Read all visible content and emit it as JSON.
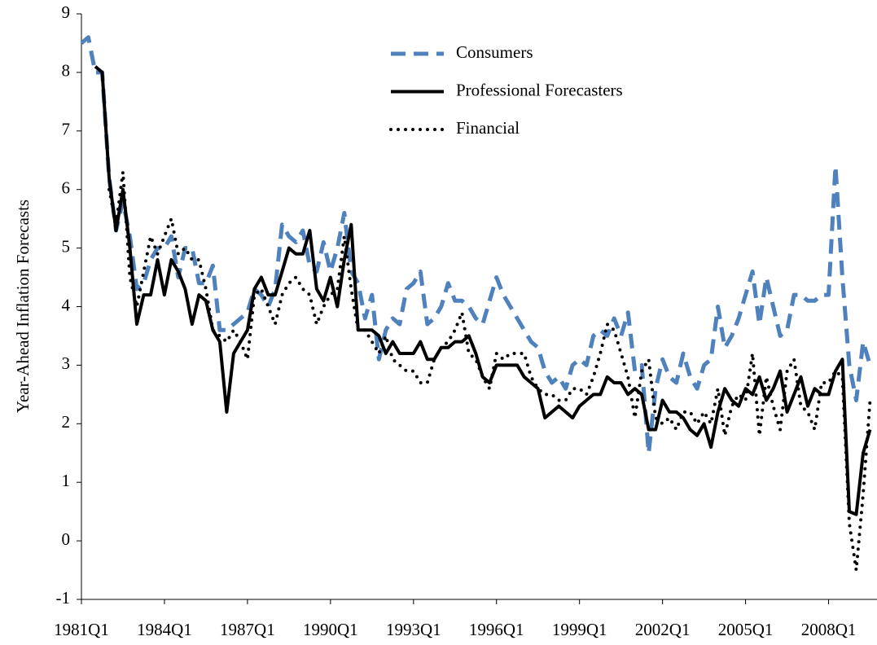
{
  "chart_data": {
    "type": "line",
    "y_label": "Year-Ahead Inflation Forecasts",
    "categories": [
      "1981Q1",
      null,
      null,
      null,
      null,
      null,
      null,
      null,
      null,
      null,
      null,
      null,
      "1984Q1",
      null,
      null,
      null,
      null,
      null,
      null,
      null,
      null,
      null,
      null,
      null,
      "1987Q1",
      null,
      null,
      null,
      null,
      null,
      null,
      null,
      null,
      null,
      null,
      null,
      "1990Q1",
      null,
      null,
      null,
      null,
      null,
      null,
      null,
      null,
      null,
      null,
      null,
      "1993Q1",
      null,
      null,
      null,
      null,
      null,
      null,
      null,
      null,
      null,
      null,
      null,
      "1996Q1",
      null,
      null,
      null,
      null,
      null,
      null,
      null,
      null,
      null,
      null,
      null,
      "1999Q1",
      null,
      null,
      null,
      null,
      null,
      null,
      null,
      null,
      null,
      null,
      null,
      "2002Q1",
      null,
      null,
      null,
      null,
      null,
      null,
      null,
      null,
      null,
      null,
      null,
      "2005Q1",
      null,
      null,
      null,
      null,
      null,
      null,
      null,
      null,
      null,
      null,
      null,
      "2008Q1",
      null,
      null,
      null,
      null,
      null,
      null
    ],
    "series": [
      {
        "name": "Consumers",
        "color": "#4f81bd",
        "dash": "dashed",
        "values": [
          8.5,
          8.6,
          8.0,
          8.0,
          6.2,
          5.3,
          5.8,
          5.2,
          4.3,
          4.4,
          4.8,
          5.0,
          5.0,
          5.2,
          4.5,
          5.0,
          5.0,
          4.4,
          4.4,
          4.7,
          3.6,
          3.6,
          3.7,
          3.8,
          3.9,
          4.3,
          4.2,
          4.0,
          4.3,
          5.4,
          5.2,
          5.1,
          5.3,
          4.7,
          4.6,
          5.1,
          4.6,
          5.0,
          5.6,
          4.6,
          4.4,
          3.8,
          4.2,
          3.1,
          3.6,
          3.8,
          3.7,
          4.3,
          4.4,
          4.6,
          3.7,
          3.8,
          4.0,
          4.4,
          4.1,
          4.1,
          4.0,
          3.8,
          3.7,
          4.1,
          4.5,
          4.2,
          4.0,
          3.8,
          3.6,
          3.4,
          3.3,
          2.9,
          2.7,
          2.8,
          2.6,
          3.0,
          3.1,
          3.0,
          3.5,
          3.6,
          3.5,
          3.8,
          3.5,
          3.9,
          2.9,
          3.0,
          1.5,
          2.6,
          3.1,
          2.8,
          2.7,
          3.2,
          2.8,
          2.6,
          3.0,
          3.1,
          4.0,
          3.3,
          3.5,
          3.8,
          4.2,
          4.6,
          3.7,
          4.5,
          4.0,
          3.5,
          3.6,
          4.2,
          4.2,
          4.1,
          4.1,
          4.2,
          4.2,
          6.4,
          4.5,
          3.0,
          2.4,
          3.4,
          3.0
        ]
      },
      {
        "name": "Professional Forecasters",
        "color": "#000000",
        "dash": "solid",
        "values": [
          null,
          null,
          8.1,
          8.0,
          6.2,
          5.3,
          6.0,
          5.0,
          3.7,
          4.2,
          4.2,
          4.8,
          4.2,
          4.8,
          4.6,
          4.3,
          3.7,
          4.2,
          4.1,
          3.6,
          3.4,
          2.2,
          3.2,
          3.4,
          3.6,
          4.3,
          4.5,
          4.2,
          4.2,
          4.6,
          5.0,
          4.9,
          4.9,
          5.3,
          4.3,
          4.1,
          4.5,
          4.0,
          4.8,
          5.4,
          3.6,
          3.6,
          3.6,
          3.5,
          3.2,
          3.4,
          3.2,
          3.2,
          3.2,
          3.4,
          3.1,
          3.1,
          3.3,
          3.3,
          3.4,
          3.4,
          3.5,
          3.2,
          2.8,
          2.7,
          3.0,
          3.0,
          3.0,
          3.0,
          2.8,
          2.7,
          2.6,
          2.1,
          2.2,
          2.3,
          2.2,
          2.1,
          2.3,
          2.4,
          2.5,
          2.5,
          2.8,
          2.7,
          2.7,
          2.5,
          2.6,
          2.5,
          1.9,
          1.9,
          2.4,
          2.2,
          2.2,
          2.1,
          1.9,
          1.8,
          2.0,
          1.6,
          2.2,
          2.6,
          2.4,
          2.3,
          2.6,
          2.5,
          2.8,
          2.4,
          2.6,
          2.9,
          2.2,
          2.5,
          2.8,
          2.3,
          2.6,
          2.5,
          2.5,
          2.9,
          3.1,
          0.5,
          0.45,
          1.5,
          1.9
        ]
      },
      {
        "name": "Financial",
        "color": "#000000",
        "dash": "dotted",
        "values": [
          null,
          null,
          null,
          null,
          6.0,
          5.4,
          6.3,
          4.5,
          4.0,
          4.6,
          5.2,
          4.9,
          5.2,
          5.5,
          4.9,
          5.0,
          4.8,
          4.8,
          4.3,
          3.6,
          3.5,
          3.4,
          3.6,
          3.4,
          3.1,
          4.2,
          4.3,
          4.0,
          3.7,
          4.2,
          4.4,
          4.5,
          4.3,
          4.2,
          3.7,
          4.0,
          4.2,
          4.3,
          5.2,
          4.3,
          3.6,
          3.6,
          3.4,
          3.2,
          3.5,
          3.1,
          3.0,
          2.9,
          2.9,
          2.7,
          2.7,
          3.1,
          3.3,
          3.4,
          3.6,
          3.9,
          3.2,
          3.1,
          2.8,
          2.6,
          3.2,
          3.1,
          3.2,
          3.2,
          3.2,
          2.8,
          2.6,
          2.5,
          2.5,
          2.4,
          2.4,
          2.6,
          2.6,
          2.5,
          2.8,
          3.2,
          3.7,
          3.6,
          3.2,
          2.8,
          2.1,
          2.9,
          3.1,
          2.1,
          2.0,
          2.1,
          1.9,
          2.2,
          2.2,
          2.0,
          2.2,
          2.0,
          2.6,
          1.8,
          2.3,
          2.5,
          2.4,
          3.2,
          1.8,
          2.8,
          2.3,
          1.9,
          2.9,
          3.1,
          2.3,
          2.2,
          1.9,
          2.7,
          2.7,
          2.9,
          2.8,
          0.3,
          -0.5,
          0.8,
          2.4
        ]
      }
    ],
    "ylim": [
      -1,
      9
    ],
    "yticks": [
      -1,
      0,
      1,
      2,
      3,
      4,
      5,
      6,
      7,
      8,
      9
    ],
    "legend": "top-center"
  }
}
